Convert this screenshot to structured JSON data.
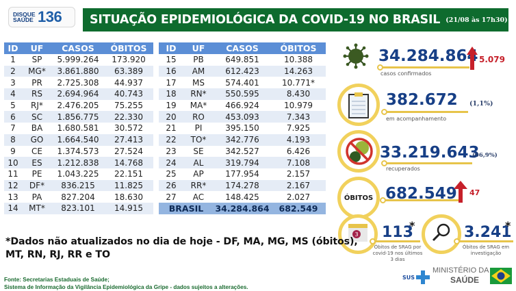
{
  "header": {
    "logo_small": "DISQUE\nSAÚDE",
    "logo_number": "136",
    "title": "SITUAÇÃO EPIDEMIOLÓGICA DA COVID-19 NO BRASIL",
    "date": "(21/08 às 17h30)"
  },
  "table": {
    "columns": [
      "ID",
      "UF",
      "CASOS",
      "ÓBITOS"
    ],
    "left_rows": [
      [
        "1",
        "SP",
        "5.999.264",
        "173.920"
      ],
      [
        "2",
        "MG*",
        "3.861.880",
        "63.389"
      ],
      [
        "3",
        "PR",
        "2.725.308",
        "44.937"
      ],
      [
        "4",
        "RS",
        "2.694.964",
        "40.743"
      ],
      [
        "5",
        "RJ*",
        "2.476.205",
        "75.255"
      ],
      [
        "6",
        "SC",
        "1.856.775",
        "22.330"
      ],
      [
        "7",
        "BA",
        "1.680.581",
        "30.572"
      ],
      [
        "8",
        "GO",
        "1.664.540",
        "27.413"
      ],
      [
        "9",
        "CE",
        "1.374.573",
        "27.524"
      ],
      [
        "10",
        "ES",
        "1.212.838",
        "14.768"
      ],
      [
        "11",
        "PE",
        "1.043.225",
        "22.151"
      ],
      [
        "12",
        "DF*",
        "836.215",
        "11.825"
      ],
      [
        "13",
        "PA",
        "827.204",
        "18.630"
      ],
      [
        "14",
        "MT*",
        "823.101",
        "14.915"
      ]
    ],
    "right_rows": [
      [
        "15",
        "PB",
        "649.851",
        "10.388"
      ],
      [
        "16",
        "AM",
        "612.423",
        "14.263"
      ],
      [
        "17",
        "MS",
        "574.401",
        "10.771*"
      ],
      [
        "18",
        "RN*",
        "550.595",
        "8.430"
      ],
      [
        "19",
        "MA*",
        "466.924",
        "10.979"
      ],
      [
        "20",
        "RO",
        "453.093",
        "7.343"
      ],
      [
        "21",
        "PI",
        "395.150",
        "7.925"
      ],
      [
        "22",
        "TO*",
        "342.776",
        "4.193"
      ],
      [
        "23",
        "SE",
        "342.527",
        "6.426"
      ],
      [
        "24",
        "AL",
        "319.794",
        "7.108"
      ],
      [
        "25",
        "AP",
        "177.954",
        "2.157"
      ],
      [
        "26",
        "RR*",
        "174.278",
        "2.167"
      ],
      [
        "27",
        "AC",
        "148.425",
        "2.027"
      ]
    ],
    "total": {
      "label": "BRASIL",
      "casos": "34.284.864",
      "obitos": "682.549"
    }
  },
  "stats": {
    "confirmed": {
      "value": "34.284.864",
      "increase": "5.079",
      "label": "casos confirmados"
    },
    "monitoring": {
      "value": "382.672",
      "pct": "(1,1%)",
      "label": "em acompanhamento"
    },
    "recovered": {
      "value": "33.219.643",
      "pct": "(96,9%)",
      "label": "recuperados"
    },
    "deaths": {
      "badge": "ÓBITOS",
      "value": "682.549",
      "increase": "47"
    },
    "srag_recent": {
      "value": "113",
      "star": "*",
      "label1": "Óbitos de SRAG por",
      "label2": "covid-19 nos últimos",
      "label3": "3 dias",
      "calendar_num": "3"
    },
    "srag_investigation": {
      "value": "3.241",
      "star": "*",
      "label1": "Óbitos de SRAG em",
      "label2": "investigação"
    }
  },
  "footer": {
    "note_line1": "*Dados não atualizados no dia de hoje - DF, MA, MG, MS (óbitos),",
    "note_line2": "MT, RN, RJ, RR e TO",
    "source_line1": "Fonte: Secretarias Estaduais de Saúde;",
    "source_line2": "Sistema de Informação da Vigilância Epidemiológica da Gripe - dados sujeitos a alterações.",
    "sus": "SUS",
    "ministry_line1": "MINISTÉRIO DA",
    "ministry_line2": "SAÚDE"
  },
  "colors": {
    "title_green": "#0e6b2e",
    "table_header_blue": "#5b8ed6",
    "row_alt": "#e5ecf6",
    "stat_blue": "#173f86",
    "accent_yellow": "#e7c44a",
    "alert_red": "#c6202a"
  }
}
